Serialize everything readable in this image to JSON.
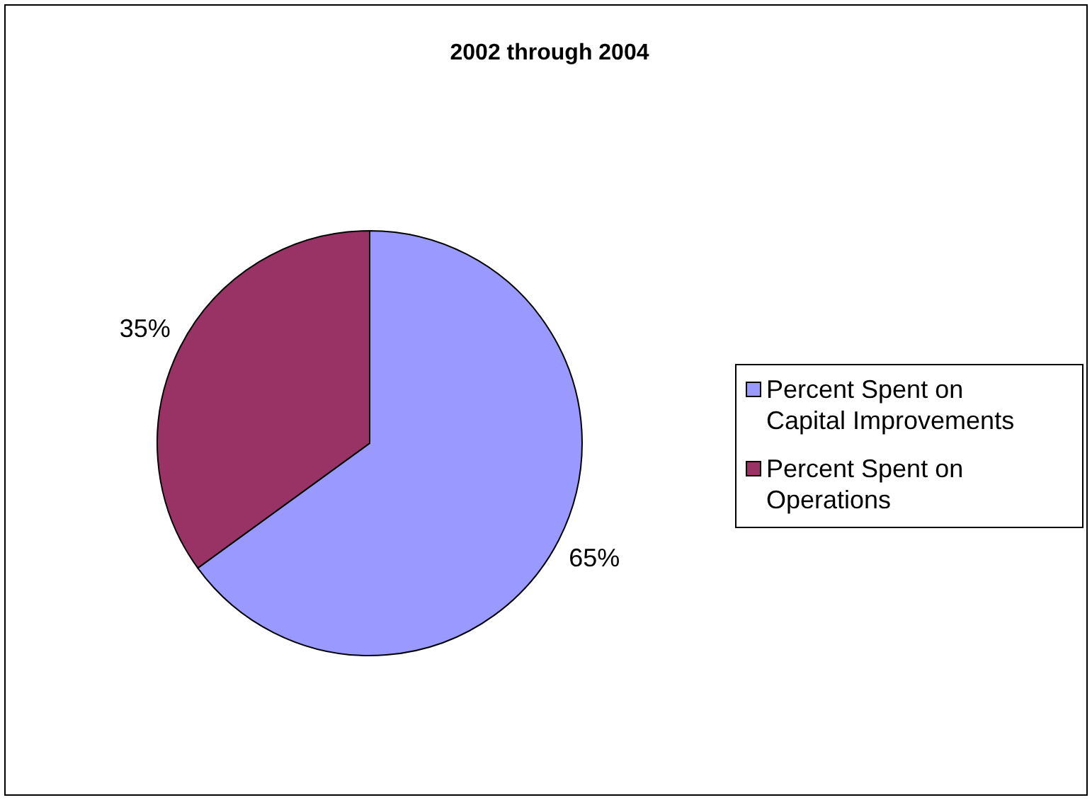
{
  "chart_data": {
    "type": "pie",
    "title": "2002 through 2004",
    "categories": [
      "Percent Spent on Capital Improvements",
      "Percent Spent on Operations"
    ],
    "values": [
      65,
      35
    ],
    "colors": [
      "#9999ff",
      "#993366"
    ],
    "value_labels": [
      "65%",
      "35%"
    ],
    "legend": "right"
  }
}
